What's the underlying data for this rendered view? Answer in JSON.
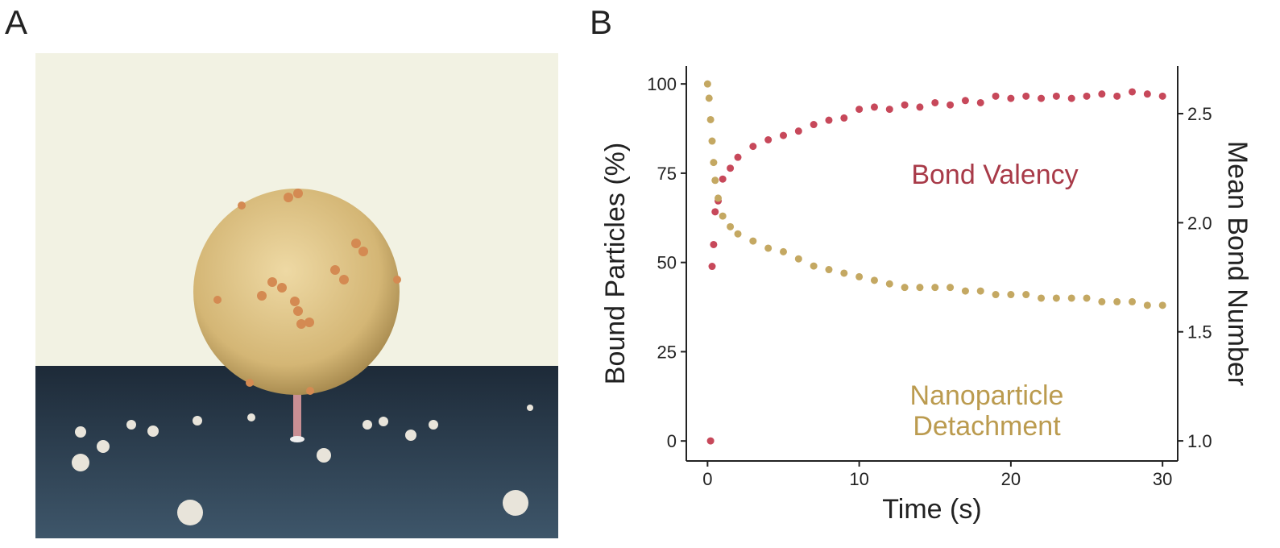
{
  "panel_labels": [
    "A",
    "B"
  ],
  "chart_data": {
    "type": "scatter",
    "x_label": "Time (s)",
    "y_label": "Bound Particles (%)",
    "y2_label": "Mean Bond Number",
    "xlim": [
      -1.4,
      31
    ],
    "xticks": [
      0,
      10,
      20,
      30
    ],
    "ylim": [
      -5.6,
      105
    ],
    "yticks": [
      0,
      25,
      50,
      75,
      100
    ],
    "y2lim": [
      0.908,
      2.718
    ],
    "y2ticks": [
      {
        "value": 1,
        "label": "1.0"
      },
      1.5,
      {
        "value": 2,
        "label": "2.0"
      },
      2.5
    ],
    "grid": false,
    "series": [
      {
        "name": "Bond Valency",
        "color": "#c7485a",
        "axis": "y2",
        "x": [
          0.2,
          0.3,
          0.4,
          0.5,
          0.7,
          1,
          1.5,
          2,
          3,
          4,
          5,
          6,
          7,
          8,
          9,
          10,
          11,
          12,
          13,
          14,
          15,
          16,
          17,
          18,
          19,
          20,
          21,
          22,
          23,
          24,
          25,
          26,
          27,
          28,
          29,
          30
        ],
        "values": [
          1.0,
          1.8,
          1.9,
          2.05,
          2.1,
          2.2,
          2.25,
          2.3,
          2.35,
          2.38,
          2.4,
          2.42,
          2.45,
          2.47,
          2.48,
          2.52,
          2.53,
          2.52,
          2.54,
          2.53,
          2.55,
          2.54,
          2.56,
          2.55,
          2.58,
          2.57,
          2.58,
          2.57,
          2.58,
          2.57,
          2.58,
          2.59,
          2.58,
          2.6,
          2.59,
          2.58
        ]
      },
      {
        "name": "Nanoparticle Detachment",
        "color": "#c4a862",
        "axis": "y",
        "x": [
          0,
          0.1,
          0.2,
          0.3,
          0.4,
          0.5,
          0.7,
          1,
          1.5,
          2,
          3,
          4,
          5,
          6,
          7,
          8,
          9,
          10,
          11,
          12,
          13,
          14,
          15,
          16,
          17,
          18,
          19,
          20,
          21,
          22,
          23,
          24,
          25,
          26,
          27,
          28,
          29,
          30
        ],
        "values": [
          100,
          96,
          90,
          84,
          78,
          73,
          68,
          63,
          60,
          58,
          56,
          54,
          53,
          51,
          49,
          48,
          47,
          46,
          45,
          44,
          43,
          43,
          43,
          43,
          42,
          42,
          41,
          41,
          41,
          40,
          40,
          40,
          40,
          39,
          39,
          39,
          38,
          38
        ]
      }
    ]
  }
}
